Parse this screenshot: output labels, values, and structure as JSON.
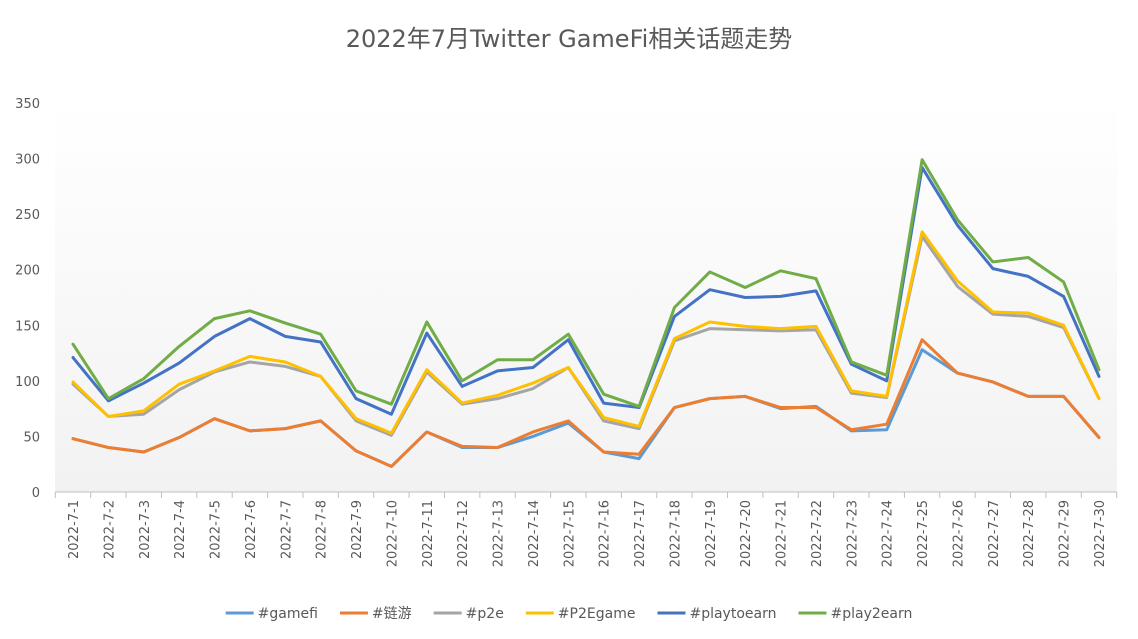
{
  "chart_data": {
    "type": "line",
    "title": "2022年7月Twitter GameFi相关话题走势",
    "categories": [
      "2022-7-1",
      "2022-7-2",
      "2022-7-3",
      "2022-7-4",
      "2022-7-5",
      "2022-7-6",
      "2022-7-7",
      "2022-7-8",
      "2022-7-9",
      "2022-7-10",
      "2022-7-11",
      "2022-7-12",
      "2022-7-13",
      "2022-7-14",
      "2022-7-15",
      "2022-7-16",
      "2022-7-17",
      "2022-7-18",
      "2022-7-19",
      "2022-7-20",
      "2022-7-21",
      "2022-7-22",
      "2022-7-23",
      "2022-7-24",
      "2022-7-25",
      "2022-7-26",
      "2022-7-27",
      "2022-7-28",
      "2022-7-29",
      "2022-7-30"
    ],
    "series": [
      {
        "name": "#gamefi",
        "color": "#5b9bd5",
        "values": [
          48,
          40,
          36,
          49,
          66,
          55,
          57,
          64,
          37,
          23,
          54,
          40,
          40,
          50,
          62,
          36,
          30,
          76,
          84,
          86,
          75,
          77,
          55,
          56,
          128,
          107,
          99,
          86,
          86,
          49
        ]
      },
      {
        "name": "#链游",
        "color": "#ed7d31",
        "values": [
          48,
          40,
          36,
          49,
          66,
          55,
          57,
          64,
          37,
          23,
          54,
          41,
          40,
          54,
          64,
          36,
          34,
          76,
          84,
          86,
          76,
          76,
          56,
          61,
          137,
          107,
          99,
          86,
          86,
          49
        ]
      },
      {
        "name": "#p2e",
        "color": "#a5a5a5",
        "values": [
          97,
          68,
          70,
          92,
          108,
          117,
          113,
          104,
          64,
          51,
          108,
          79,
          84,
          93,
          112,
          64,
          57,
          136,
          147,
          146,
          145,
          146,
          89,
          85,
          230,
          185,
          160,
          158,
          148,
          84
        ]
      },
      {
        "name": "#P2Egame",
        "color": "#ffc000",
        "values": [
          99,
          68,
          73,
          97,
          109,
          122,
          117,
          104,
          66,
          53,
          110,
          80,
          87,
          98,
          112,
          67,
          59,
          138,
          153,
          149,
          147,
          149,
          91,
          86,
          234,
          190,
          162,
          161,
          150,
          84
        ]
      },
      {
        "name": "#playtoearn",
        "color": "#4472c4",
        "values": [
          121,
          82,
          98,
          116,
          140,
          156,
          140,
          135,
          84,
          70,
          143,
          95,
          109,
          112,
          137,
          80,
          76,
          158,
          182,
          175,
          176,
          181,
          115,
          100,
          292,
          240,
          201,
          194,
          176,
          104
        ]
      },
      {
        "name": "#play2earn",
        "color": "#70ad47",
        "values": [
          133,
          84,
          102,
          131,
          156,
          163,
          152,
          142,
          91,
          79,
          153,
          100,
          119,
          119,
          142,
          88,
          77,
          166,
          198,
          184,
          199,
          192,
          117,
          105,
          299,
          245,
          207,
          211,
          189,
          110
        ]
      }
    ],
    "ylim": [
      0,
      350
    ],
    "yticks": [
      0,
      50,
      100,
      150,
      200,
      250,
      300,
      350
    ],
    "grid": false,
    "legend": "bottom"
  }
}
